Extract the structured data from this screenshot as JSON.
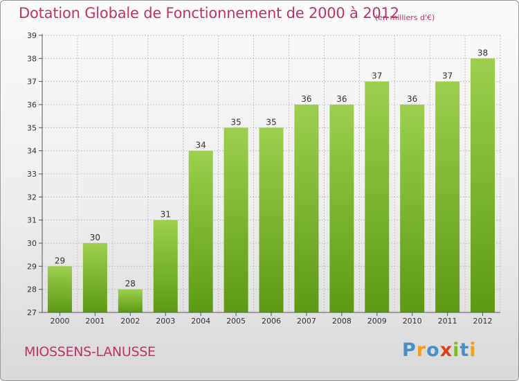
{
  "header": {
    "title": "Dotation Globale de Fonctionnement de 2000 à 2012",
    "subtitle": "(en milliers d'€)"
  },
  "footer": {
    "commune": "MIOSSENS-LANUSSE",
    "logo_text": "Proxiti",
    "logo_letters": [
      {
        "ch": "P",
        "color": "#4a90c8"
      },
      {
        "ch": "r",
        "color": "#f0a020"
      },
      {
        "ch": "o",
        "color": "#4a90c8"
      },
      {
        "ch": "x",
        "color": "#e0401a"
      },
      {
        "ch": "i",
        "color": "#7cb82a"
      },
      {
        "ch": "t",
        "color": "#4a90c8"
      },
      {
        "ch": "i",
        "color": "#f0a020"
      }
    ]
  },
  "colors": {
    "bar_top": "#9dcf4f",
    "bar_bottom": "#5c9a14",
    "grid": "#b8b8b8",
    "axis": "#555555",
    "text": "#333333"
  },
  "chart_data": {
    "type": "bar",
    "categories": [
      "2000",
      "2001",
      "2002",
      "2003",
      "2004",
      "2005",
      "2006",
      "2007",
      "2008",
      "2009",
      "2010",
      "2011",
      "2012"
    ],
    "values": [
      29,
      30,
      28,
      31,
      34,
      35,
      35,
      36,
      36,
      37,
      36,
      37,
      38
    ],
    "ylim": [
      27,
      39
    ],
    "yticks": [
      27,
      28,
      29,
      30,
      31,
      32,
      33,
      34,
      35,
      36,
      37,
      38,
      39
    ],
    "grid": true,
    "data_labels": true
  }
}
